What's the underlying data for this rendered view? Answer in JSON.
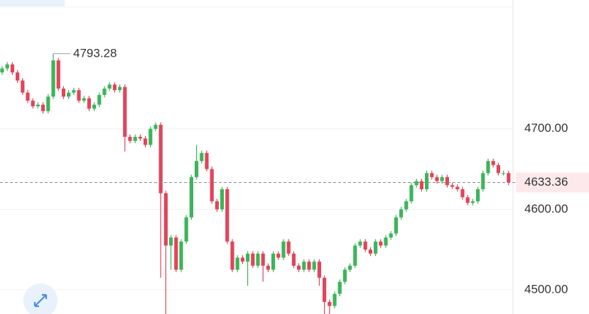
{
  "chart_data": {
    "type": "candlestick",
    "up_color": "#3cb55a",
    "down_color": "#e0455a",
    "grid": true,
    "ylim": [
      4470,
      4860
    ],
    "yticks": [
      {
        "value": 4500,
        "label": "4500.00"
      },
      {
        "value": 4600,
        "label": "4600.00"
      },
      {
        "value": 4700,
        "label": "4700.00"
      }
    ],
    "open": [
      4770,
      4775,
      4780,
      4770,
      4760,
      4745,
      4735,
      4728,
      4730,
      4722,
      4740,
      4785,
      4750,
      4740,
      4745,
      4748,
      4735,
      4738,
      4725,
      4730,
      4742,
      4750,
      4755,
      4748,
      4752,
      4690,
      4685,
      4690,
      4688,
      4680,
      4700,
      4705,
      4620,
      4555,
      4565,
      4525,
      4560,
      4590,
      4640,
      4660,
      4670,
      4650,
      4610,
      4600,
      4625,
      4560,
      4525,
      4540,
      4535,
      4545,
      4530,
      4545,
      4530,
      4525,
      4545,
      4540,
      4560,
      4545,
      4530,
      4525,
      4535,
      4525,
      4535,
      4515,
      4485,
      4480,
      4495,
      4510,
      4525,
      4530,
      4555,
      4560,
      4550,
      4545,
      4560,
      4555,
      4565,
      4570,
      4590,
      4600,
      4610,
      4630,
      4635,
      4625,
      4645,
      4640,
      4635,
      4640,
      4630,
      4628,
      4625,
      4615,
      4608,
      4610,
      4625,
      4645,
      4660,
      4655,
      4645,
      4645
    ],
    "high": [
      4778,
      4783,
      4783,
      4773,
      4763,
      4748,
      4738,
      4733,
      4733,
      4743,
      4793.28,
      4788,
      4753,
      4748,
      4751,
      4751,
      4741,
      4741,
      4733,
      4745,
      4753,
      4758,
      4758,
      4755,
      4755,
      4693,
      4693,
      4693,
      4691,
      4703,
      4708,
      4708,
      4623,
      4568,
      4568,
      4563,
      4593,
      4643,
      4680,
      4673,
      4673,
      4653,
      4613,
      4628,
      4628,
      4563,
      4543,
      4543,
      4548,
      4548,
      4548,
      4548,
      4533,
      4548,
      4548,
      4563,
      4563,
      4548,
      4533,
      4538,
      4538,
      4538,
      4538,
      4518,
      4488,
      4498,
      4513,
      4528,
      4533,
      4558,
      4563,
      4563,
      4553,
      4563,
      4563,
      4568,
      4573,
      4593,
      4603,
      4613,
      4633,
      4638,
      4638,
      4648,
      4648,
      4643,
      4643,
      4643,
      4633,
      4631,
      4628,
      4618,
      4613,
      4628,
      4648,
      4663,
      4663,
      4658,
      4648,
      4648
    ],
    "low": [
      4767,
      4772,
      4767,
      4757,
      4742,
      4732,
      4725,
      4725,
      4719,
      4719,
      4737,
      4747,
      4737,
      4737,
      4742,
      4732,
      4732,
      4722,
      4722,
      4727,
      4739,
      4747,
      4745,
      4745,
      4672,
      4682,
      4682,
      4685,
      4677,
      4677,
      4697,
      4515,
      4470,
      4525,
      4522,
      4522,
      4557,
      4587,
      4637,
      4657,
      4647,
      4607,
      4597,
      4597,
      4557,
      4522,
      4522,
      4532,
      4505,
      4527,
      4527,
      4510,
      4522,
      4522,
      4537,
      4537,
      4542,
      4527,
      4522,
      4522,
      4522,
      4522,
      4505,
      4470,
      4470,
      4477,
      4492,
      4507,
      4522,
      4527,
      4552,
      4547,
      4542,
      4542,
      4552,
      4552,
      4562,
      4567,
      4587,
      4597,
      4607,
      4627,
      4622,
      4622,
      4637,
      4632,
      4632,
      4627,
      4625,
      4622,
      4612,
      4605,
      4605,
      4607,
      4622,
      4642,
      4652,
      4642,
      4642,
      4630
    ],
    "close": [
      4775,
      4780,
      4770,
      4760,
      4745,
      4735,
      4728,
      4730,
      4722,
      4740,
      4785,
      4750,
      4740,
      4745,
      4748,
      4735,
      4738,
      4725,
      4730,
      4742,
      4750,
      4755,
      4748,
      4752,
      4690,
      4685,
      4690,
      4688,
      4680,
      4700,
      4705,
      4620,
      4555,
      4565,
      4525,
      4560,
      4590,
      4640,
      4660,
      4670,
      4650,
      4610,
      4600,
      4625,
      4560,
      4525,
      4540,
      4535,
      4545,
      4530,
      4545,
      4530,
      4525,
      4545,
      4540,
      4560,
      4545,
      4530,
      4525,
      4535,
      4525,
      4535,
      4515,
      4485,
      4480,
      4495,
      4510,
      4525,
      4530,
      4555,
      4560,
      4550,
      4545,
      4560,
      4555,
      4565,
      4570,
      4590,
      4600,
      4610,
      4630,
      4635,
      4625,
      4645,
      4640,
      4635,
      4640,
      4630,
      4628,
      4625,
      4615,
      4608,
      4610,
      4625,
      4645,
      4660,
      4655,
      4645,
      4645,
      4633.36
    ]
  }
}
